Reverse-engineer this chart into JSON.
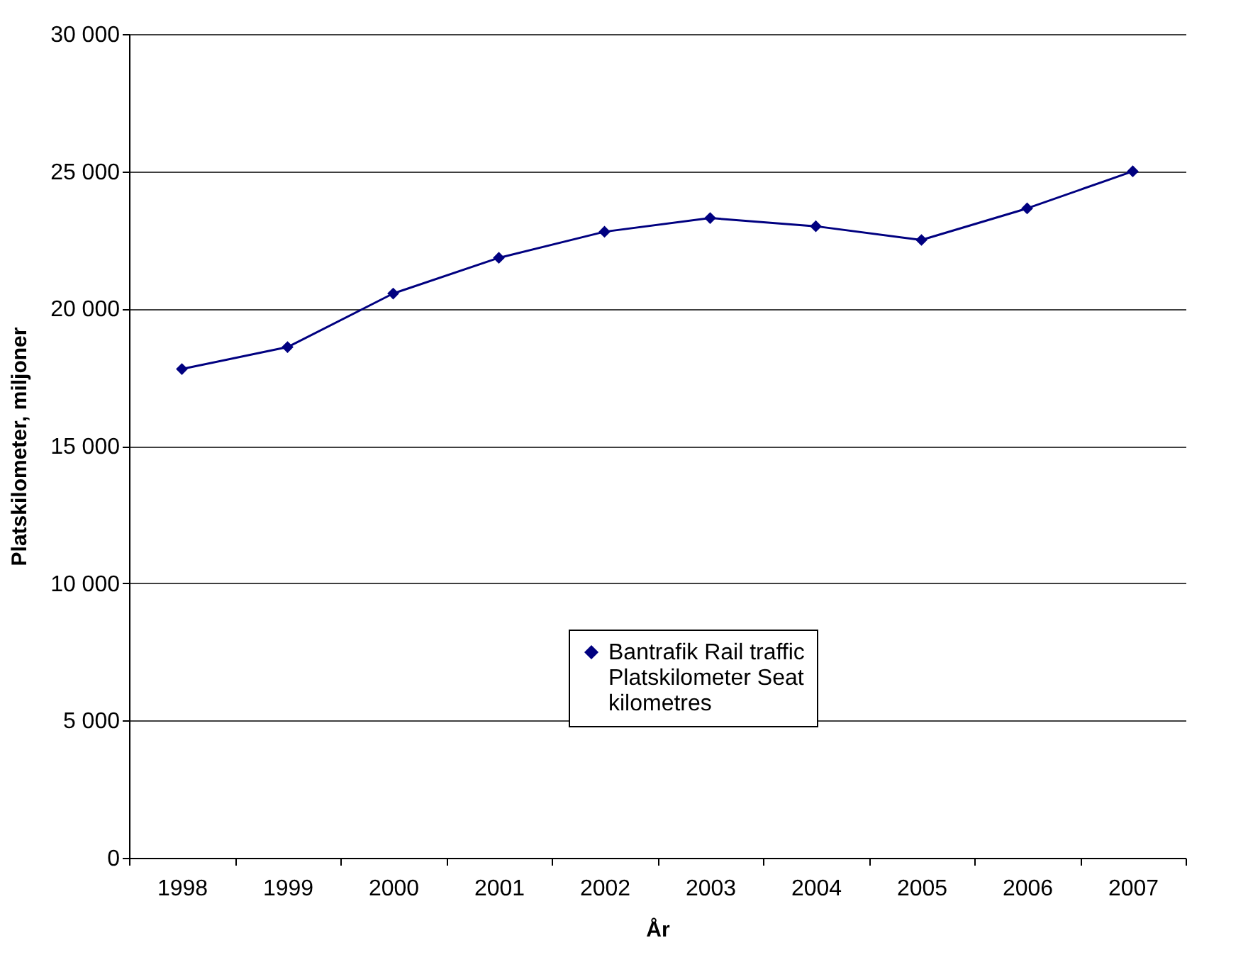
{
  "chart_data": {
    "type": "line",
    "xlabel": "År",
    "ylabel": "Platskilometer, miljoner",
    "categories": [
      "1998",
      "1999",
      "2000",
      "2001",
      "2002",
      "2003",
      "2004",
      "2005",
      "2006",
      "2007"
    ],
    "series": [
      {
        "name": "Bantrafik Rail traffic Platskilometer Seat kilometres",
        "color": "#000080",
        "values": [
          17800,
          18600,
          20550,
          21850,
          22800,
          23300,
          23000,
          22500,
          23650,
          25000
        ]
      }
    ],
    "ylim": [
      0,
      30000
    ],
    "yticks": [
      0,
      {
        "value": 5000,
        "label": "5 000"
      },
      {
        "value": 10000,
        "label": "10 000"
      },
      {
        "value": 15000,
        "label": "15 000"
      },
      {
        "value": 20000,
        "label": "20 000"
      },
      {
        "value": 25000,
        "label": "25 000"
      },
      {
        "value": 30000,
        "label": "30 000"
      }
    ],
    "grid": "y",
    "legend": "bottom",
    "marker": "diamond",
    "line_style": "solid"
  }
}
